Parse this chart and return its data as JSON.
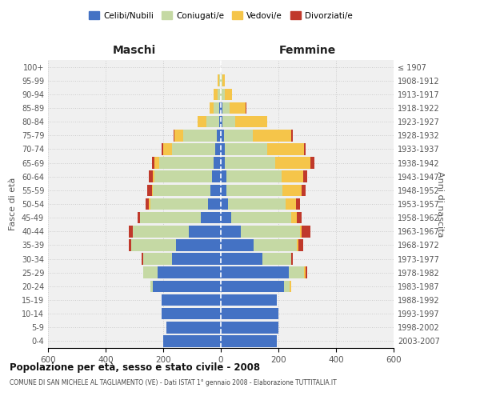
{
  "age_groups": [
    "0-4",
    "5-9",
    "10-14",
    "15-19",
    "20-24",
    "25-29",
    "30-34",
    "35-39",
    "40-44",
    "45-49",
    "50-54",
    "55-59",
    "60-64",
    "65-69",
    "70-74",
    "75-79",
    "80-84",
    "85-89",
    "90-94",
    "95-99",
    "100+"
  ],
  "birth_years": [
    "2003-2007",
    "1998-2002",
    "1993-1997",
    "1988-1992",
    "1983-1987",
    "1978-1982",
    "1973-1977",
    "1968-1972",
    "1963-1967",
    "1958-1962",
    "1953-1957",
    "1948-1952",
    "1943-1947",
    "1938-1942",
    "1933-1937",
    "1928-1932",
    "1923-1927",
    "1918-1922",
    "1913-1917",
    "1908-1912",
    "≤ 1907"
  ],
  "male": {
    "celibi": [
      200,
      190,
      205,
      205,
      235,
      220,
      170,
      155,
      110,
      70,
      45,
      35,
      30,
      25,
      20,
      15,
      5,
      5,
      0,
      0,
      0
    ],
    "coniugati": [
      0,
      0,
      0,
      0,
      10,
      50,
      100,
      155,
      195,
      210,
      200,
      200,
      200,
      190,
      150,
      115,
      45,
      20,
      10,
      5,
      0
    ],
    "vedovi": [
      0,
      0,
      0,
      0,
      0,
      0,
      0,
      0,
      0,
      0,
      5,
      5,
      5,
      15,
      30,
      30,
      30,
      15,
      15,
      5,
      0
    ],
    "divorziati": [
      0,
      0,
      0,
      0,
      0,
      0,
      5,
      10,
      15,
      10,
      10,
      15,
      15,
      10,
      5,
      5,
      0,
      0,
      0,
      0,
      0
    ]
  },
  "female": {
    "nubili": [
      195,
      200,
      200,
      195,
      220,
      235,
      145,
      115,
      70,
      35,
      25,
      20,
      20,
      15,
      15,
      10,
      5,
      5,
      0,
      0,
      0
    ],
    "coniugate": [
      0,
      0,
      0,
      0,
      20,
      55,
      100,
      150,
      205,
      210,
      200,
      195,
      190,
      175,
      145,
      100,
      45,
      25,
      15,
      5,
      0
    ],
    "vedove": [
      0,
      0,
      0,
      0,
      5,
      5,
      0,
      5,
      5,
      20,
      35,
      65,
      75,
      120,
      130,
      135,
      110,
      55,
      25,
      10,
      0
    ],
    "divorziate": [
      0,
      0,
      0,
      0,
      0,
      5,
      5,
      15,
      30,
      15,
      15,
      15,
      15,
      15,
      5,
      5,
      0,
      5,
      0,
      0,
      0
    ]
  },
  "colors": {
    "celibi_nubili": "#4472C4",
    "coniugati": "#C5D9A4",
    "vedovi": "#F5C54A",
    "divorziati": "#C0392B"
  },
  "xlim": 600,
  "title": "Popolazione per età, sesso e stato civile - 2008",
  "subtitle": "COMUNE DI SAN MICHELE AL TAGLIAMENTO (VE) - Dati ISTAT 1° gennaio 2008 - Elaborazione TUTTITALIA.IT",
  "ylabel_left": "Fasce di età",
  "ylabel_right": "Anni di nascita",
  "xlabel_left": "Maschi",
  "xlabel_right": "Femmine",
  "bg_color": "#f0f0f0",
  "grid_color": "#cccccc"
}
